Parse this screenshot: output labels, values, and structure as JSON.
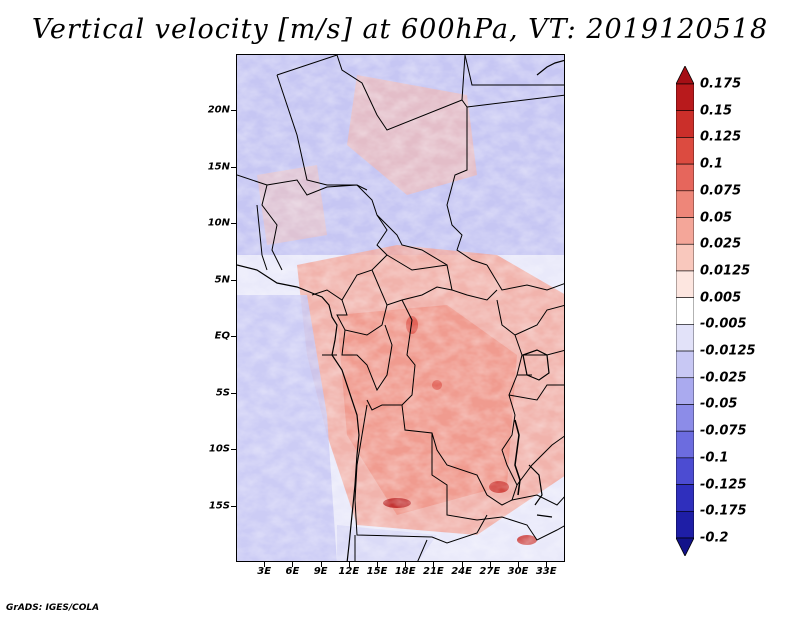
{
  "title": "Vertical velocity [m/s] at 600hPa, VT: 2019120518",
  "credit": "GrADS: IGES/COLA",
  "map": {
    "variable": "Vertical velocity",
    "units": "m/s",
    "level": "600hPa",
    "valid_time": "2019120518",
    "lat_labels": [
      "20N",
      "15N",
      "10N",
      "5N",
      "EQ",
      "5S",
      "10S",
      "15S"
    ],
    "lon_labels": [
      "3E",
      "6E",
      "9E",
      "12E",
      "15E",
      "18E",
      "21E",
      "24E",
      "27E",
      "30E",
      "33E"
    ],
    "lat_range": [
      -20,
      25
    ],
    "lon_range": [
      0,
      35
    ],
    "lat_values": [
      20,
      15,
      10,
      5,
      0,
      -5,
      -10,
      -15
    ],
    "lon_values": [
      3,
      6,
      9,
      12,
      15,
      18,
      21,
      24,
      27,
      30,
      33
    ]
  },
  "colorbar": {
    "labels": [
      "0.175",
      "0.15",
      "0.125",
      "0.1",
      "0.075",
      "0.05",
      "0.025",
      "0.0125",
      "0.005",
      "-0.005",
      "-0.0125",
      "-0.025",
      "-0.05",
      "-0.075",
      "-0.1",
      "-0.125",
      "-0.175",
      "-0.2"
    ],
    "colors": [
      "#a50f15",
      "#b81a1c",
      "#cb2f2a",
      "#dc4b40",
      "#e6665c",
      "#ee8679",
      "#f4a699",
      "#f9c8bd",
      "#fde6e0",
      "#ffffff",
      "#e2e2f9",
      "#c8c8f4",
      "#aaaaef",
      "#8c8ce8",
      "#6c6cdf",
      "#4c4cd2",
      "#2f2fbd",
      "#1e1ea6",
      "#12128a"
    ]
  }
}
